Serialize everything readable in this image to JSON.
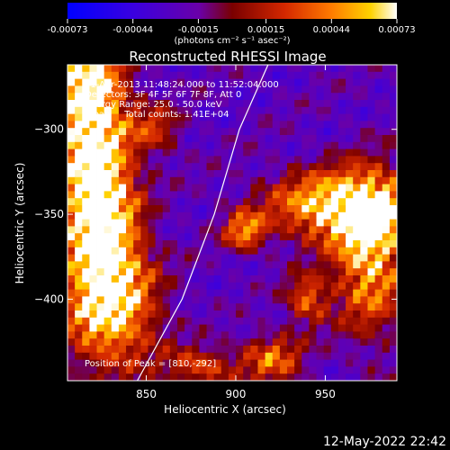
{
  "colorbar": {
    "tick_labels": [
      "-0.00073",
      "-0.00044",
      "-0.00015",
      "0.00015",
      "0.00044",
      "0.00073"
    ],
    "tick_values": [
      -0.00073,
      -0.00044,
      -0.00015,
      0.00015,
      0.00044,
      0.00073
    ],
    "range": [
      -0.00073,
      0.00073
    ],
    "units_label": "(photons cm⁻² s⁻¹ asec⁻²)",
    "colors": [
      "#0000ff",
      "#3a00e0",
      "#6a00a8",
      "#7a0000",
      "#d42800",
      "#ff7a00",
      "#ffd200",
      "#ffffff"
    ]
  },
  "chart_data": {
    "type": "heatmap",
    "title": "Reconstructed RHESSI Image",
    "xlabel": "Heliocentric X (arcsec)",
    "ylabel": "Heliocentric Y (arcsec)",
    "xlim": [
      806,
      990
    ],
    "ylim": [
      -448,
      -262
    ],
    "x_ticks": [
      850,
      900,
      950
    ],
    "x_tick_labels": [
      "850",
      "900",
      "950"
    ],
    "y_ticks": [
      -300,
      -350,
      -400
    ],
    "y_tick_labels": [
      "−300",
      "−350",
      "−400"
    ],
    "info_lines": [
      "21-Apr-2013 11:48:24.000 to 11:52:04.000",
      "Detectors: 3F 4F 5F 6F 7F 8F, Att 0",
      "Energy Range: 25.0 - 50.0 keV",
      "Clean     Total counts: 1.41E+04"
    ],
    "peak_label": "Position of Peak = [810,-292]",
    "peak_position": [
      810,
      -292
    ],
    "limb_curve": [
      [
        845,
        -448
      ],
      [
        870,
        -400
      ],
      [
        888,
        -350
      ],
      [
        902,
        -300
      ],
      [
        918,
        -262
      ]
    ],
    "bright_sources": [
      {
        "x": 818,
        "y": -285,
        "sx": 14,
        "sy": 40,
        "amp": 0.95
      },
      {
        "x": 825,
        "y": -355,
        "sx": 14,
        "sy": 30,
        "amp": 0.85
      },
      {
        "x": 830,
        "y": -405,
        "sx": 18,
        "sy": 25,
        "amp": 0.75
      },
      {
        "x": 960,
        "y": -345,
        "sx": 28,
        "sy": 14,
        "amp": 0.85
      },
      {
        "x": 975,
        "y": -375,
        "sx": 14,
        "sy": 30,
        "amp": 0.7
      },
      {
        "x": 905,
        "y": -360,
        "sx": 8,
        "sy": 8,
        "amp": 0.55
      },
      {
        "x": 920,
        "y": -435,
        "sx": 12,
        "sy": 10,
        "amp": 0.5
      },
      {
        "x": 880,
        "y": -440,
        "sx": 14,
        "sy": 8,
        "amp": 0.45
      },
      {
        "x": 940,
        "y": -400,
        "sx": 8,
        "sy": 10,
        "amp": 0.5
      },
      {
        "x": 855,
        "y": -300,
        "sx": 10,
        "sy": 10,
        "amp": 0.35
      }
    ]
  },
  "timestamp": "12-May-2022 22:42"
}
